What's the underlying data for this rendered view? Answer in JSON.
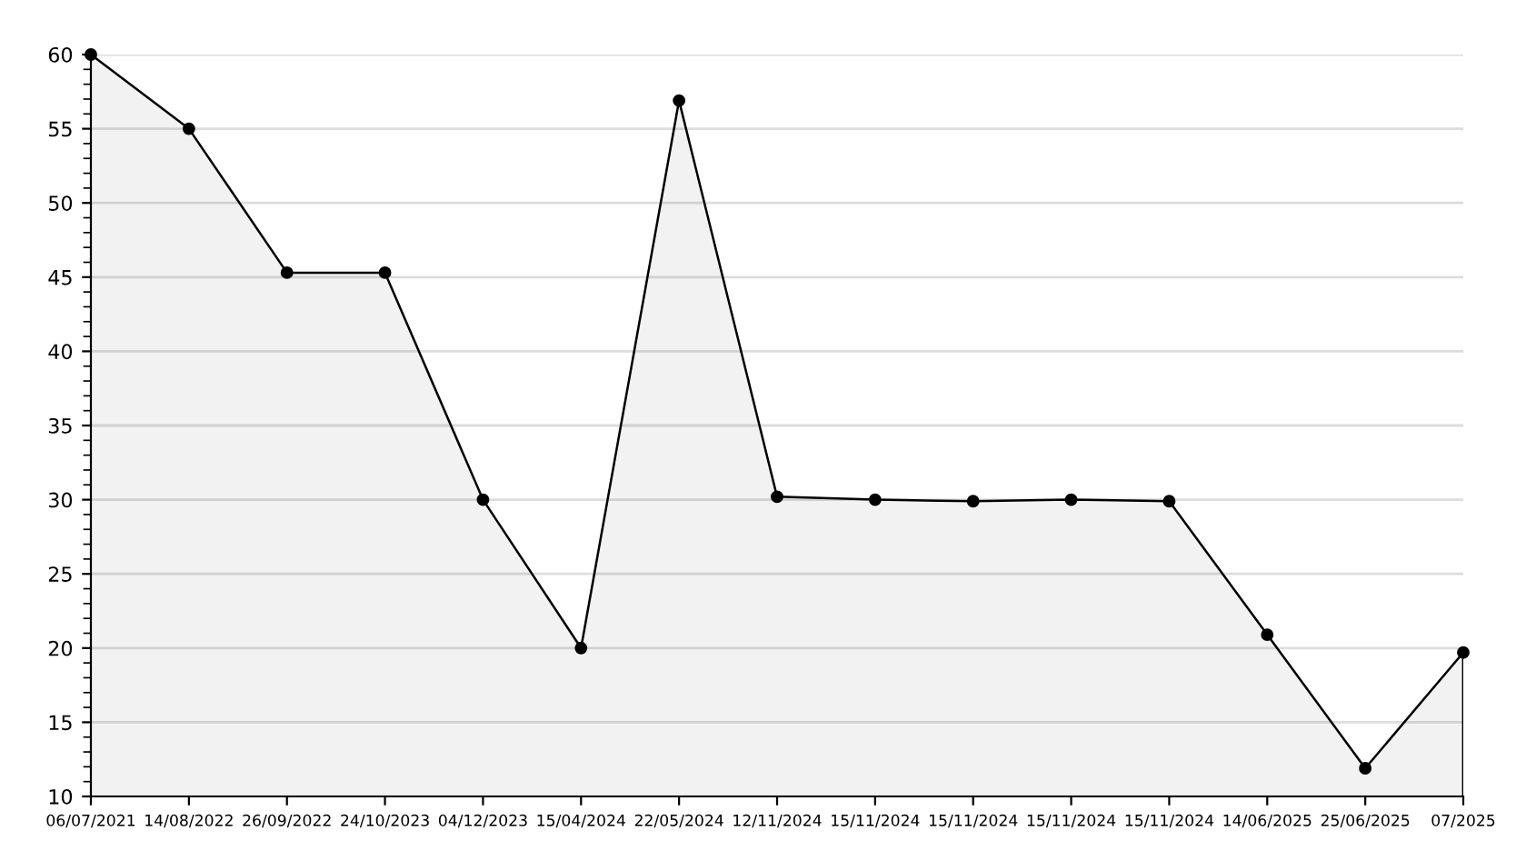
{
  "chart_data": {
    "type": "area",
    "categories": [
      "06/07/2021",
      "14/08/2022",
      "26/09/2022",
      "24/10/2023",
      "04/12/2023",
      "15/04/2024",
      "22/05/2024",
      "12/11/2024",
      "15/11/2024",
      "15/11/2024",
      "15/11/2024",
      "15/11/2024",
      "14/06/2025",
      "25/06/2025",
      "07/2025"
    ],
    "series": [
      {
        "color": "#000000",
        "values": [
          60,
          55,
          45.3,
          45.3,
          30,
          20,
          56.9,
          30.2,
          30.0,
          29.9,
          30.0,
          29.9,
          20.9,
          11.9,
          19.7
        ]
      }
    ],
    "ylim": [
      10,
      60
    ],
    "yticks": [
      10,
      15,
      20,
      25,
      30,
      35,
      40,
      45,
      50,
      55,
      60
    ],
    "grid": "y",
    "marker": "circle",
    "line_style": "solid",
    "legend": false
  }
}
